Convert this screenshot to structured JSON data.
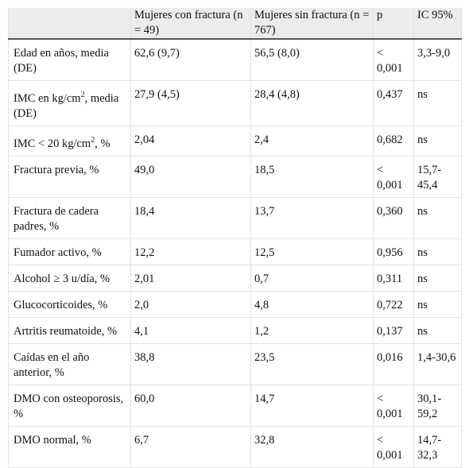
{
  "table": {
    "headers": [
      "",
      "Mujeres con fractura (n = 49)",
      "Mujeres sin fractura (n = 767)",
      "p",
      "IC 95%"
    ],
    "rows": [
      [
        "Edad en años, media (DE)",
        "62,6 (9,7)",
        "56,5 (8,0)",
        "< 0,001",
        "3,3-9,0"
      ],
      [
        {
          "pre": "IMC en kg/cm",
          "sup": "2",
          "post": ", media (DE)"
        },
        "27,9 (4,5)",
        "28,4 (4,8)",
        "0,437",
        "ns"
      ],
      [
        {
          "pre": "IMC < 20 kg/cm",
          "sup": "2",
          "post": ", %"
        },
        "2,04",
        "2,4",
        "0,682",
        "ns"
      ],
      [
        "Fractura previa, %",
        "49,0",
        "18,5",
        "< 0,001",
        "15,7-45,4"
      ],
      [
        "Fractura de cadera padres, %",
        "18,4",
        "13,7",
        "0,360",
        "ns"
      ],
      [
        "Fumador activo, %",
        "12,2",
        "12,5",
        "0,956",
        "ns"
      ],
      [
        "Alcohol ≥ 3 u/día, %",
        "2,01",
        "0,7",
        "0,311",
        "ns"
      ],
      [
        "Glucocorticoides, %",
        "2,0",
        "4,8",
        "0,722",
        "ns"
      ],
      [
        "Artritis reumatoide, %",
        "4,1",
        "1,2",
        "0,137",
        "ns"
      ],
      [
        "Caídas en el año anterior, %",
        "38,8",
        "23,5",
        "0,016",
        "1,4-30,6"
      ],
      [
        "DMO con osteoporosis, %",
        "60,0",
        "14,7",
        "< 0,001",
        "30,1-59,2"
      ],
      [
        "DMO normal, %",
        "6,7",
        "32,8",
        "< 0,001",
        "14,7-32,3"
      ]
    ]
  }
}
